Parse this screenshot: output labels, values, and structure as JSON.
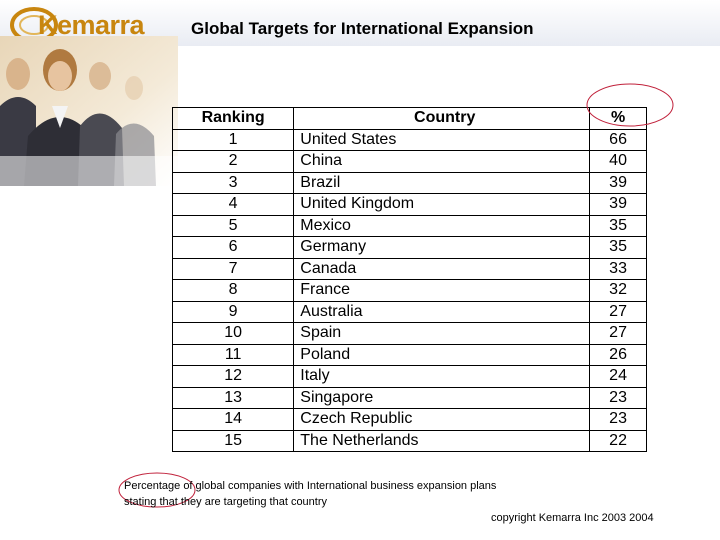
{
  "header": {
    "logo_text": "Kemarra",
    "title": "Global Targets for International Expansion"
  },
  "table": {
    "headers": [
      "Ranking",
      "Country",
      "%"
    ],
    "rows": [
      [
        "1",
        "United States",
        "66"
      ],
      [
        "2",
        "China",
        "40"
      ],
      [
        "3",
        "Brazil",
        "39"
      ],
      [
        "4",
        "United Kingdom",
        "39"
      ],
      [
        "5",
        "Mexico",
        "35"
      ],
      [
        "6",
        "Germany",
        "35"
      ],
      [
        "7",
        "Canada",
        "33"
      ],
      [
        "8",
        "France",
        "32"
      ],
      [
        "9",
        "Australia",
        "27"
      ],
      [
        "10",
        "Spain",
        "27"
      ],
      [
        "11",
        "Poland",
        "26"
      ],
      [
        "12",
        "Italy",
        "24"
      ],
      [
        "13",
        "Singapore",
        "23"
      ],
      [
        "14",
        "Czech Republic",
        "23"
      ],
      [
        "15",
        "The Netherlands",
        "22"
      ]
    ]
  },
  "footnote": {
    "line1": "Percentage of global companies with International business expansion plans",
    "line2": "stating that they are targeting that country"
  },
  "copyright": "copyright Kemarra Inc 2003 2004",
  "colors": {
    "logo": "#c8860f",
    "annotation_circle": "#c0203a"
  }
}
